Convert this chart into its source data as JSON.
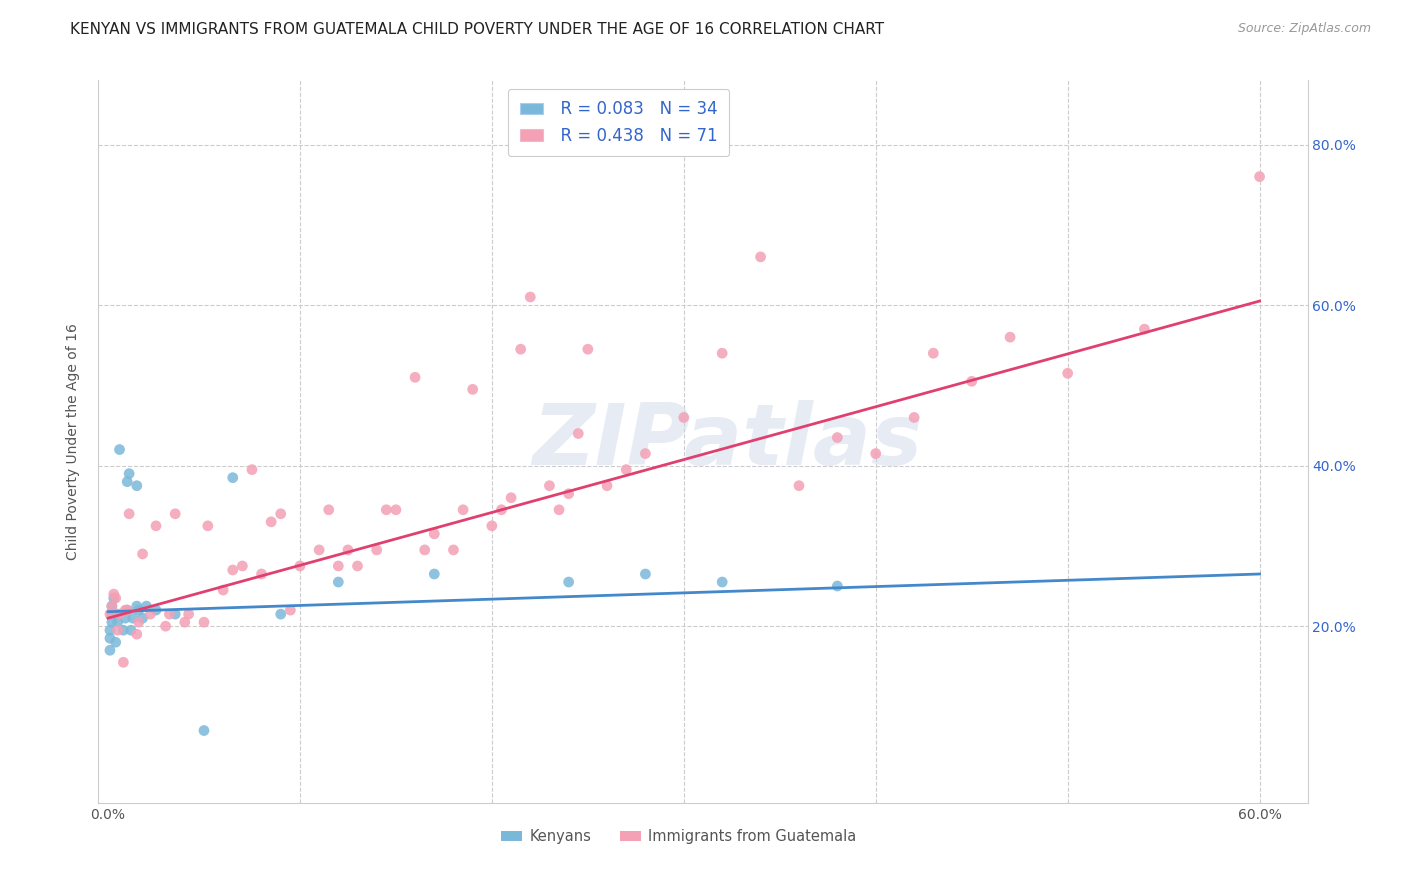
{
  "title": "KENYAN VS IMMIGRANTS FROM GUATEMALA CHILD POVERTY UNDER THE AGE OF 16 CORRELATION CHART",
  "source": "Source: ZipAtlas.com",
  "ylabel": "Child Poverty Under the Age of 16",
  "xlim": [
    -0.005,
    0.625
  ],
  "ylim": [
    -0.02,
    0.88
  ],
  "xtick_positions": [
    0.0,
    0.1,
    0.2,
    0.3,
    0.4,
    0.5,
    0.6
  ],
  "xtick_labels": [
    "0.0%",
    "",
    "",
    "",
    "",
    "",
    "60.0%"
  ],
  "ytick_positions": [
    0.0,
    0.2,
    0.4,
    0.6,
    0.8
  ],
  "ytick_labels_right": [
    "",
    "20.0%",
    "40.0%",
    "60.0%",
    "80.0%"
  ],
  "legend_label_blue": "Kenyans",
  "legend_label_pink": "Immigrants from Guatemala",
  "legend_R_blue": "R = 0.083",
  "legend_N_blue": "N = 34",
  "legend_R_pink": "R = 0.438",
  "legend_N_pink": "N = 71",
  "blue_color": "#7ab8d9",
  "pink_color": "#f4a0b5",
  "blue_line_color": "#4488cc",
  "pink_line_color": "#e04070",
  "watermark": "ZIPatlas",
  "blue_scatter_x": [
    0.001,
    0.001,
    0.001,
    0.002,
    0.002,
    0.002,
    0.003,
    0.004,
    0.005,
    0.005,
    0.006,
    0.008,
    0.009,
    0.01,
    0.01,
    0.011,
    0.012,
    0.013,
    0.015,
    0.015,
    0.016,
    0.018,
    0.02,
    0.025,
    0.035,
    0.05,
    0.065,
    0.09,
    0.12,
    0.17,
    0.24,
    0.28,
    0.32,
    0.38
  ],
  "blue_scatter_y": [
    0.17,
    0.185,
    0.195,
    0.205,
    0.215,
    0.225,
    0.235,
    0.18,
    0.205,
    0.215,
    0.42,
    0.195,
    0.21,
    0.22,
    0.38,
    0.39,
    0.195,
    0.21,
    0.225,
    0.375,
    0.22,
    0.21,
    0.225,
    0.22,
    0.215,
    0.07,
    0.385,
    0.215,
    0.255,
    0.265,
    0.255,
    0.265,
    0.255,
    0.25
  ],
  "pink_scatter_x": [
    0.001,
    0.002,
    0.003,
    0.004,
    0.005,
    0.006,
    0.008,
    0.009,
    0.01,
    0.011,
    0.015,
    0.016,
    0.018,
    0.022,
    0.025,
    0.03,
    0.032,
    0.035,
    0.04,
    0.042,
    0.05,
    0.052,
    0.06,
    0.065,
    0.07,
    0.075,
    0.08,
    0.085,
    0.09,
    0.095,
    0.1,
    0.11,
    0.115,
    0.12,
    0.125,
    0.13,
    0.14,
    0.145,
    0.15,
    0.16,
    0.165,
    0.17,
    0.18,
    0.185,
    0.19,
    0.2,
    0.205,
    0.21,
    0.215,
    0.22,
    0.23,
    0.235,
    0.24,
    0.245,
    0.25,
    0.26,
    0.27,
    0.28,
    0.3,
    0.32,
    0.34,
    0.36,
    0.38,
    0.4,
    0.42,
    0.43,
    0.45,
    0.47,
    0.5,
    0.54,
    0.6
  ],
  "pink_scatter_y": [
    0.215,
    0.225,
    0.24,
    0.235,
    0.195,
    0.215,
    0.155,
    0.22,
    0.22,
    0.34,
    0.19,
    0.205,
    0.29,
    0.215,
    0.325,
    0.2,
    0.215,
    0.34,
    0.205,
    0.215,
    0.205,
    0.325,
    0.245,
    0.27,
    0.275,
    0.395,
    0.265,
    0.33,
    0.34,
    0.22,
    0.275,
    0.295,
    0.345,
    0.275,
    0.295,
    0.275,
    0.295,
    0.345,
    0.345,
    0.51,
    0.295,
    0.315,
    0.295,
    0.345,
    0.495,
    0.325,
    0.345,
    0.36,
    0.545,
    0.61,
    0.375,
    0.345,
    0.365,
    0.44,
    0.545,
    0.375,
    0.395,
    0.415,
    0.46,
    0.54,
    0.66,
    0.375,
    0.435,
    0.415,
    0.46,
    0.54,
    0.505,
    0.56,
    0.515,
    0.57,
    0.76
  ],
  "blue_trend_x": [
    0.0,
    0.6
  ],
  "blue_trend_y_start": 0.218,
  "blue_trend_y_end": 0.265,
  "pink_trend_x": [
    0.0,
    0.6
  ],
  "pink_trend_y_start": 0.21,
  "pink_trend_y_end": 0.605,
  "background_color": "#ffffff",
  "grid_color": "#cccccc",
  "title_fontsize": 11,
  "axis_label_fontsize": 10,
  "tick_fontsize": 10,
  "legend_fontsize": 12
}
